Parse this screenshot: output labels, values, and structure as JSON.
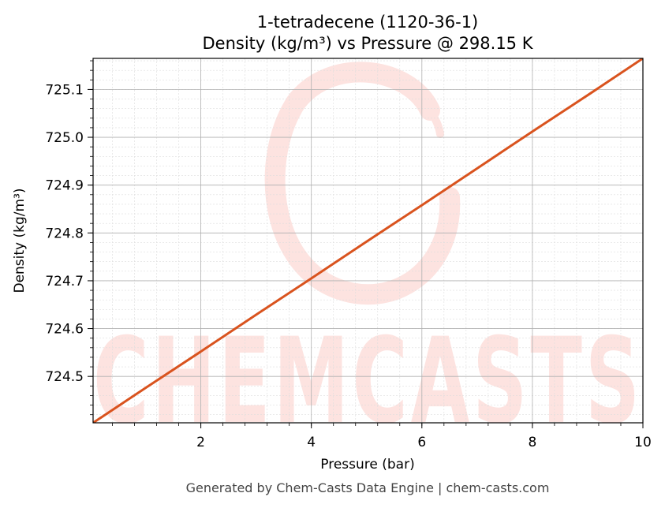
{
  "chart_data": {
    "type": "line",
    "title": "1-tetradecene (1120-36-1)",
    "subtitle": "Density (kg/m³) vs Pressure @ 298.15 K",
    "xlabel": "Pressure (bar)",
    "ylabel": "Density (kg/m³)",
    "xlim": [
      0.05,
      10.0
    ],
    "ylim": [
      724.403,
      725.165
    ],
    "x_ticks": [
      2,
      4,
      6,
      8,
      10
    ],
    "x_tick_labels": [
      "2",
      "4",
      "6",
      "8",
      "10"
    ],
    "y_ticks": [
      724.5,
      724.6,
      724.7,
      724.8,
      724.9,
      725.0,
      725.1
    ],
    "y_tick_labels": [
      "724.5",
      "724.6",
      "724.7",
      "724.8",
      "724.9",
      "725.0",
      "725.1"
    ],
    "grid": true,
    "minor_grid": true,
    "series": [
      {
        "color": "#d9531e",
        "x": [
          0.05,
          1.0,
          2.0,
          3.0,
          4.0,
          5.0,
          6.0,
          7.0,
          8.0,
          9.0,
          10.0
        ],
        "y": [
          724.403,
          724.476,
          724.552,
          724.629,
          724.705,
          724.782,
          724.858,
          724.935,
          725.012,
          725.088,
          725.165
        ]
      }
    ]
  },
  "footer": "Generated by Chem-Casts Data Engine | chem-casts.com",
  "watermark": {
    "text": "CHEMCASTS",
    "color": "#fde3e0"
  }
}
